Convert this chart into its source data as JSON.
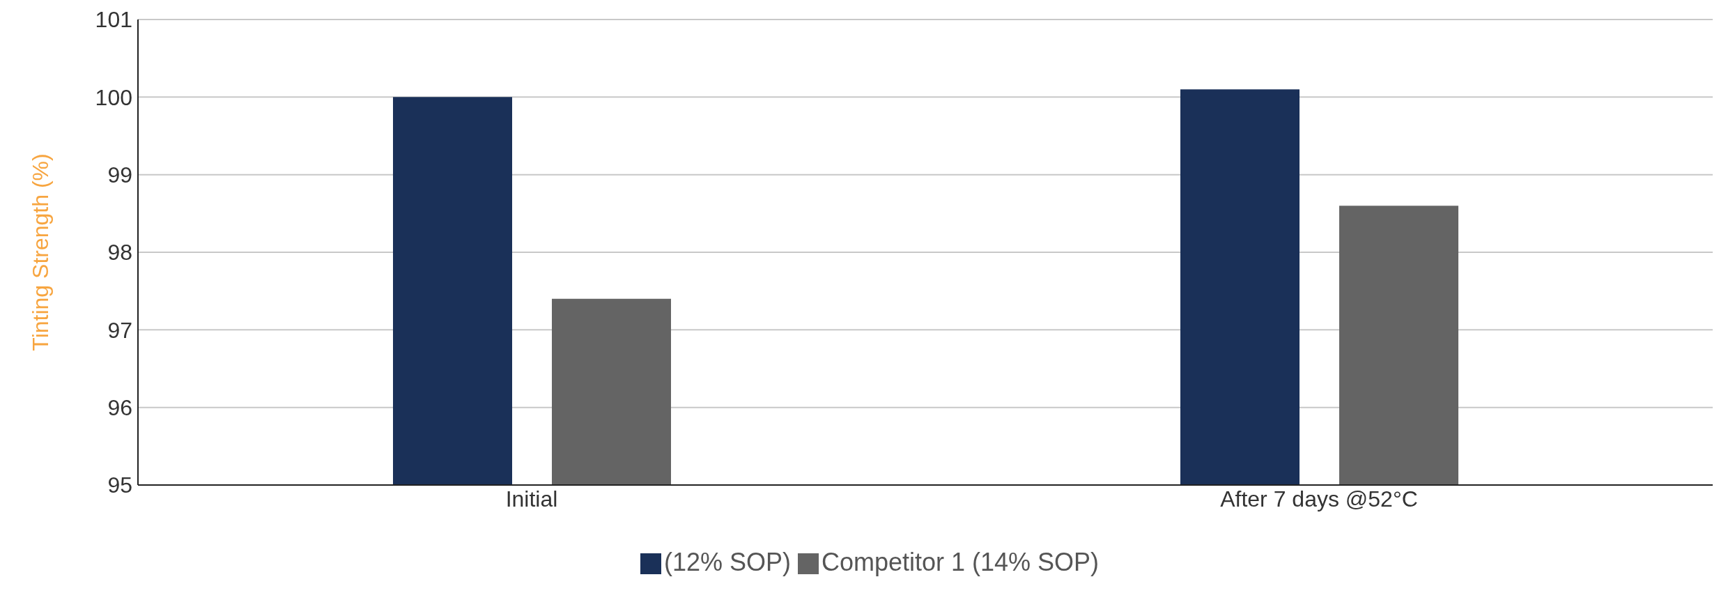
{
  "chart_data": {
    "type": "bar",
    "ylabel": "Tinting Strength (%)",
    "categories": [
      "Initial",
      "After 7 days @52°C"
    ],
    "series": [
      {
        "name": "(12% SOP)",
        "color": "#1a3058",
        "values": [
          100.0,
          100.1
        ]
      },
      {
        "name": "Competitor 1 (14% SOP)",
        "color": "#646464",
        "values": [
          97.4,
          98.6
        ]
      }
    ],
    "ylim": [
      95,
      101
    ],
    "yticks": [
      95,
      96,
      97,
      98,
      99,
      100,
      101
    ],
    "grid": "y",
    "legend": "bottom"
  }
}
